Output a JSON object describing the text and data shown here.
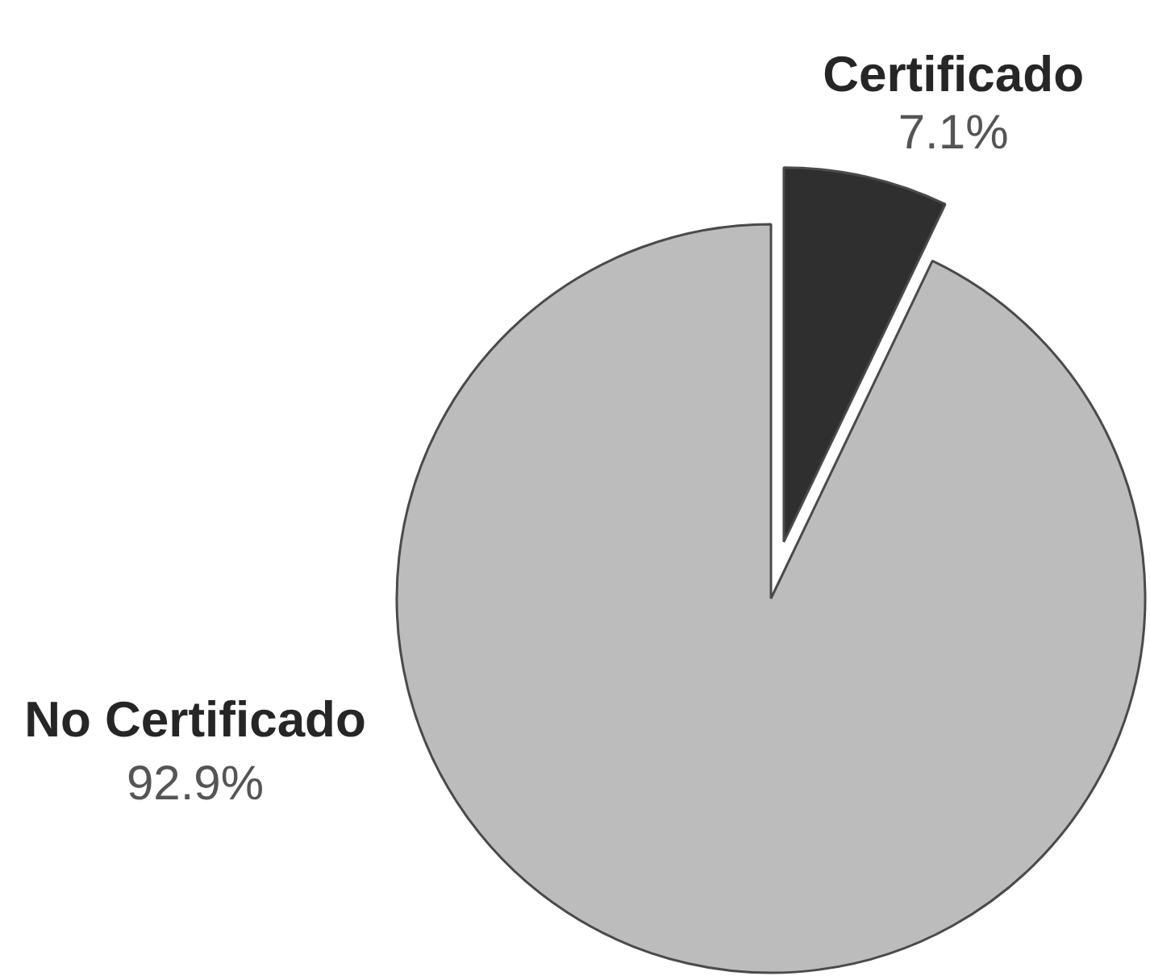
{
  "chart_data": {
    "type": "pie",
    "categories": [
      "Certificado",
      "No Certificado"
    ],
    "values": [
      7.1,
      92.9
    ],
    "colors": [
      "#2f2f2f",
      "#bcbcbc"
    ],
    "value_labels": [
      "7.1%",
      "92.9%"
    ],
    "legend": false
  }
}
